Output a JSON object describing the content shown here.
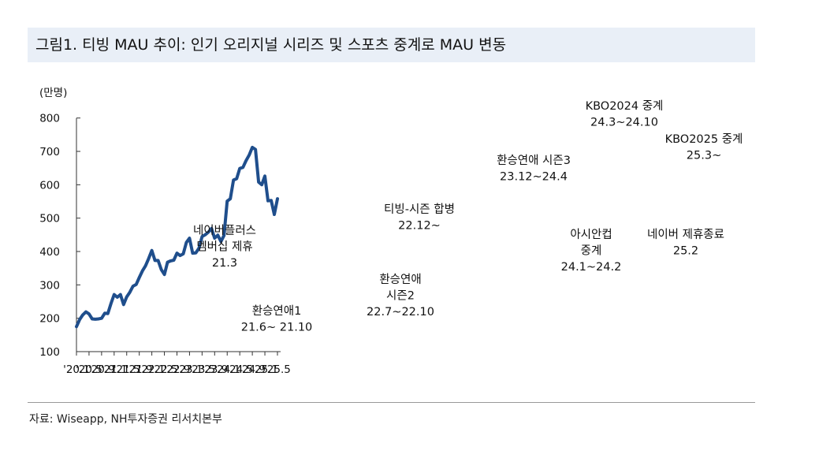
{
  "header": {
    "title": "그림1. 티빙 MAU 추이: 인기 오리지널 시리즈 및 스포츠 중계로 MAU 변동"
  },
  "source": "자료: Wiseapp, NH투자증권 리서치본부",
  "colors": {
    "line": "#1f4e8c",
    "title_bg": "#e9eff7"
  },
  "chart_data": {
    "type": "line",
    "ylabel": "(만명)",
    "ylim": [
      100,
      800
    ],
    "yticks": [
      "100",
      "200",
      "300",
      "400",
      "500",
      "600",
      "700",
      "800"
    ],
    "xticks": [
      "'20.1",
      "'20.5",
      "'20.9",
      "'21.1",
      "'21.5",
      "'21.9",
      "'22.1",
      "'22.5",
      "'22.9",
      "'23.1",
      "'23.5",
      "'23.9",
      "'24.1",
      "'24.5",
      "'24.9",
      "'25.1",
      "'25.5"
    ],
    "grid": false,
    "series": [
      {
        "values": [
          175,
          196,
          210,
          219,
          213,
          198,
          197,
          198,
          200,
          215,
          214,
          244,
          271,
          263,
          271,
          241,
          264,
          278,
          296,
          301,
          322,
          342,
          357,
          379,
          403,
          373,
          373,
          346,
          331,
          368,
          372,
          374,
          395,
          388,
          393,
          427,
          440,
          395,
          396,
          410,
          445,
          450,
          458,
          469,
          440,
          449,
          430,
          448,
          551,
          558,
          614,
          618,
          649,
          652,
          672,
          689,
          712,
          706,
          608,
          600,
          626,
          552,
          553,
          511,
          558
        ]
      }
    ],
    "annotations": [
      {
        "lines": [
          "네이버플러스",
          "멤버십 제휴",
          "21.3"
        ]
      },
      {
        "lines": [
          "환승연애1",
          "21.6~ 21.10"
        ]
      },
      {
        "lines": [
          "티빙-시즌 합병",
          "22.12~"
        ]
      },
      {
        "lines": [
          "환승연애",
          "시즌2",
          "22.7~22.10"
        ]
      },
      {
        "lines": [
          "환승연애 시즌3",
          "23.12~24.4"
        ]
      },
      {
        "lines": [
          "KBO2024 중계",
          "24.3~24.10"
        ]
      },
      {
        "lines": [
          "아시안컵",
          "중계",
          "24.1~24.2"
        ]
      },
      {
        "lines": [
          "KBO2025 중계",
          "25.3~"
        ]
      },
      {
        "lines": [
          "네이버 제휴종료",
          "25.2"
        ]
      }
    ]
  }
}
